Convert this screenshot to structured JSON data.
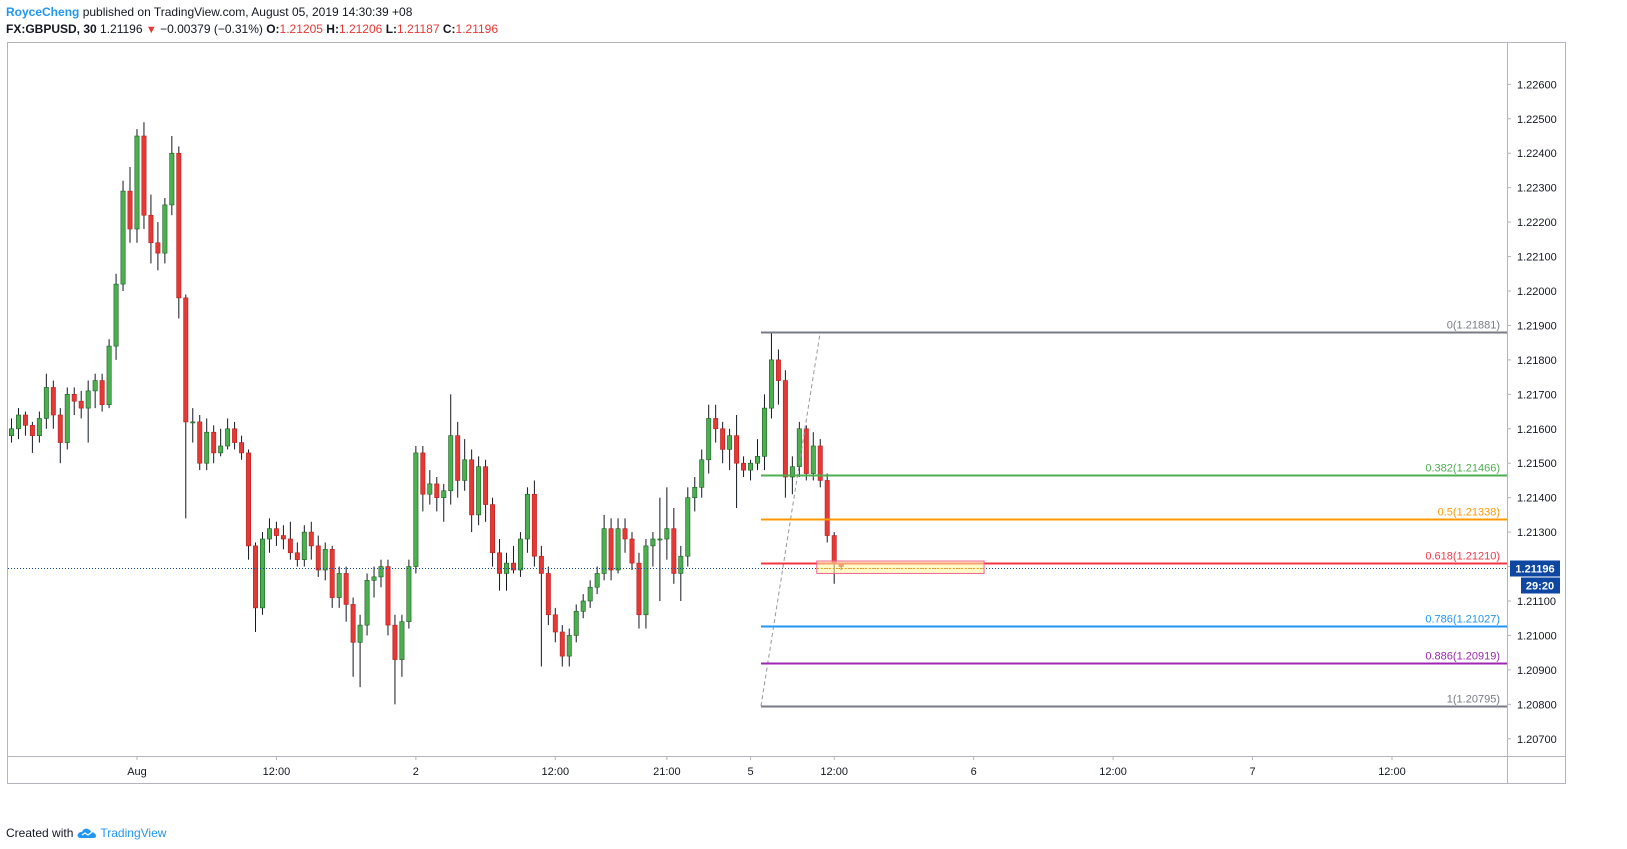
{
  "header": {
    "author": "RoyceCheng",
    "published_text": "published on TradingView.com, August 05, 2019 14:30:39 +08",
    "symbol": "FX:GBPUSD, 30",
    "last": "1.21196",
    "change": "−0.00379 (−0.31%)",
    "ohlc_labels": {
      "o": "O:",
      "h": "H:",
      "l": "L:",
      "c": "C:"
    },
    "open": "1.21205",
    "high": "1.21206",
    "low": "1.21187",
    "close": "1.21196",
    "down_arrow": "▼"
  },
  "footer": {
    "created_with": "Created with",
    "brand": "TradingView",
    "logo_icon": "tradingview-cloud-icon"
  },
  "colors": {
    "up": "#4caf50",
    "down": "#e53935",
    "up_border": "#1b5e20",
    "down_border": "#b71c1c",
    "blue_candle": "#2962ff",
    "fib_0": "#787b86",
    "fib_0382": "#4caf50",
    "fib_05": "#ff9800",
    "fib_0618": "#f23645",
    "fib_0786": "#2196f3",
    "fib_0886": "#9c27b0",
    "fib_1": "#787b86",
    "price_badge": "#0d47a1"
  },
  "chart_data": {
    "type": "candlestick",
    "symbol": "FX:GBPUSD",
    "timeframe": "30",
    "ylim": [
      1.2065,
      1.2272
    ],
    "y_ticks": [
      "1.22600",
      "1.22500",
      "1.22400",
      "1.22300",
      "1.22200",
      "1.22100",
      "1.22000",
      "1.21900",
      "1.21800",
      "1.21700",
      "1.21600",
      "1.21500",
      "1.21400",
      "1.21300",
      "1.21200",
      "1.21100",
      "1.21000",
      "1.20900",
      "1.20800",
      "1.20700"
    ],
    "y_tick_values": [
      1.226,
      1.225,
      1.224,
      1.223,
      1.222,
      1.221,
      1.22,
      1.219,
      1.218,
      1.217,
      1.216,
      1.215,
      1.214,
      1.213,
      1.212,
      1.211,
      1.21,
      1.209,
      1.208,
      1.207
    ],
    "x_ticks": [
      {
        "label": "Aug",
        "bar": 18
      },
      {
        "label": "12:00",
        "bar": 38
      },
      {
        "label": "2",
        "bar": 58
      },
      {
        "label": "12:00",
        "bar": 78
      },
      {
        "label": "21:00",
        "bar": 94
      },
      {
        "label": "5",
        "bar": 106
      },
      {
        "label": "12:00",
        "bar": 118
      },
      {
        "label": "6",
        "bar": 138
      },
      {
        "label": "12:00",
        "bar": 158
      },
      {
        "label": "7",
        "bar": 178
      },
      {
        "label": "12:00",
        "bar": 198
      }
    ],
    "bars_total": 215,
    "candles": [
      [
        1.2158,
        1.2163,
        1.2156,
        1.216
      ],
      [
        1.216,
        1.2166,
        1.2157,
        1.2164
      ],
      [
        1.2164,
        1.2165,
        1.2158,
        1.2161
      ],
      [
        1.2161,
        1.2162,
        1.2153,
        1.2158
      ],
      [
        1.2158,
        1.2165,
        1.2156,
        1.2163
      ],
      [
        1.2163,
        1.2176,
        1.216,
        1.2172
      ],
      [
        1.2172,
        1.2174,
        1.216,
        1.2164
      ],
      [
        1.2164,
        1.2166,
        1.215,
        1.2156
      ],
      [
        1.2156,
        1.2172,
        1.2154,
        1.217
      ],
      [
        1.217,
        1.2172,
        1.2164,
        1.2168
      ],
      [
        1.2168,
        1.2171,
        1.2163,
        1.2166
      ],
      [
        1.2166,
        1.2174,
        1.2156,
        1.2171
      ],
      [
        1.2171,
        1.2176,
        1.2166,
        1.2174
      ],
      [
        1.2174,
        1.2176,
        1.2165,
        1.2167
      ],
      [
        1.2167,
        1.2186,
        1.2166,
        1.2184
      ],
      [
        1.2184,
        1.2205,
        1.218,
        1.2202
      ],
      [
        1.2202,
        1.2232,
        1.22,
        1.2229
      ],
      [
        1.2229,
        1.2236,
        1.2214,
        1.2218
      ],
      [
        1.2218,
        1.2247,
        1.2214,
        1.2245
      ],
      [
        1.2245,
        1.2249,
        1.2218,
        1.2222
      ],
      [
        1.2222,
        1.2228,
        1.2208,
        1.2214
      ],
      [
        1.2214,
        1.222,
        1.2206,
        1.2211
      ],
      [
        1.2211,
        1.2227,
        1.2208,
        1.2225
      ],
      [
        1.2225,
        1.2245,
        1.2222,
        1.224
      ],
      [
        1.224,
        1.2242,
        1.2192,
        1.2198
      ],
      [
        1.2198,
        1.2199,
        1.2134,
        1.2162
      ],
      [
        1.2162,
        1.2166,
        1.2156,
        1.2162
      ],
      [
        1.2162,
        1.2164,
        1.2148,
        1.215
      ],
      [
        1.215,
        1.2163,
        1.2148,
        1.2159
      ],
      [
        1.2159,
        1.2161,
        1.215,
        1.2153
      ],
      [
        1.2153,
        1.216,
        1.2152,
        1.2155
      ],
      [
        1.2155,
        1.2163,
        1.2154,
        1.216
      ],
      [
        1.216,
        1.2162,
        1.2154,
        1.2156
      ],
      [
        1.2156,
        1.2158,
        1.2151,
        1.2153
      ],
      [
        1.2153,
        1.2154,
        1.2122,
        1.2126
      ],
      [
        1.2126,
        1.2127,
        1.2101,
        1.2108
      ],
      [
        1.2108,
        1.213,
        1.2106,
        1.2128
      ],
      [
        1.2128,
        1.2134,
        1.2124,
        1.2131
      ],
      [
        1.2131,
        1.2133,
        1.2126,
        1.2129
      ],
      [
        1.2129,
        1.2132,
        1.2125,
        1.2128
      ],
      [
        1.2128,
        1.2133,
        1.2122,
        1.2124
      ],
      [
        1.2124,
        1.2127,
        1.212,
        1.2122
      ],
      [
        1.2122,
        1.2132,
        1.212,
        1.213
      ],
      [
        1.213,
        1.2133,
        1.2122,
        1.2126
      ],
      [
        1.2126,
        1.2129,
        1.2117,
        1.2119
      ],
      [
        1.2119,
        1.2127,
        1.2116,
        1.2125
      ],
      [
        1.2125,
        1.2126,
        1.2108,
        1.2111
      ],
      [
        1.2111,
        1.212,
        1.2108,
        1.2118
      ],
      [
        1.2118,
        1.212,
        1.2104,
        1.2109
      ],
      [
        1.2109,
        1.2111,
        1.2088,
        1.2098
      ],
      [
        1.2098,
        1.2106,
        1.2085,
        1.2103
      ],
      [
        1.2103,
        1.2118,
        1.21,
        1.2116
      ],
      [
        1.2116,
        1.212,
        1.2111,
        1.2117
      ],
      [
        1.2117,
        1.2122,
        1.2114,
        1.212
      ],
      [
        1.212,
        1.2122,
        1.21,
        1.2103
      ],
      [
        1.2103,
        1.2106,
        1.208,
        1.2093
      ],
      [
        1.2093,
        1.2106,
        1.2088,
        1.2104
      ],
      [
        1.2104,
        1.2122,
        1.2102,
        1.212
      ],
      [
        1.212,
        1.2155,
        1.2118,
        1.2153
      ],
      [
        1.2153,
        1.2155,
        1.2136,
        1.2141
      ],
      [
        1.2141,
        1.2148,
        1.2138,
        1.2144
      ],
      [
        1.2144,
        1.2146,
        1.2136,
        1.214
      ],
      [
        1.214,
        1.2144,
        1.2133,
        1.2142
      ],
      [
        1.2142,
        1.217,
        1.2138,
        1.2158
      ],
      [
        1.2158,
        1.2162,
        1.214,
        1.2145
      ],
      [
        1.2145,
        1.2157,
        1.2142,
        1.2151
      ],
      [
        1.2151,
        1.2154,
        1.213,
        1.2135
      ],
      [
        1.2135,
        1.2152,
        1.2132,
        1.2149
      ],
      [
        1.2149,
        1.2151,
        1.2133,
        1.2138
      ],
      [
        1.2138,
        1.214,
        1.212,
        1.2124
      ],
      [
        1.2124,
        1.2128,
        1.2113,
        1.2118
      ],
      [
        1.2118,
        1.2124,
        1.2113,
        1.2121
      ],
      [
        1.2121,
        1.2126,
        1.2118,
        1.2119
      ],
      [
        1.2119,
        1.213,
        1.2117,
        1.2128
      ],
      [
        1.2128,
        1.2143,
        1.2124,
        1.2141
      ],
      [
        1.2141,
        1.2145,
        1.212,
        1.2123
      ],
      [
        1.2123,
        1.2126,
        1.2091,
        1.2118
      ],
      [
        1.2118,
        1.212,
        1.2103,
        1.2106
      ],
      [
        1.2106,
        1.2108,
        1.2098,
        1.2101
      ],
      [
        1.2101,
        1.2103,
        1.2091,
        1.2094
      ],
      [
        1.2094,
        1.2102,
        1.2091,
        1.21
      ],
      [
        1.21,
        1.2109,
        1.2098,
        1.2107
      ],
      [
        1.2107,
        1.2112,
        1.2105,
        1.211
      ],
      [
        1.211,
        1.2116,
        1.2108,
        1.2114
      ],
      [
        1.2114,
        1.212,
        1.2112,
        1.2118
      ],
      [
        1.2118,
        1.2135,
        1.2116,
        1.2131
      ],
      [
        1.2131,
        1.2134,
        1.2116,
        1.2119
      ],
      [
        1.2119,
        1.2134,
        1.2118,
        1.2131
      ],
      [
        1.2131,
        1.2134,
        1.2124,
        1.2128
      ],
      [
        1.2128,
        1.213,
        1.2119,
        1.2121
      ],
      [
        1.2121,
        1.2124,
        1.2102,
        1.2106
      ],
      [
        1.2106,
        1.2128,
        1.2102,
        1.2126
      ],
      [
        1.2126,
        1.213,
        1.212,
        1.2128
      ],
      [
        1.2128,
        1.214,
        1.211,
        1.2128
      ],
      [
        1.2128,
        1.2143,
        1.2122,
        1.2131
      ],
      [
        1.2131,
        1.2137,
        1.2115,
        1.2118
      ],
      [
        1.2118,
        1.2126,
        1.211,
        1.2123
      ],
      [
        1.2123,
        1.2143,
        1.212,
        1.214
      ],
      [
        1.214,
        1.2146,
        1.2136,
        1.2143
      ],
      [
        1.2143,
        1.2154,
        1.214,
        1.2151
      ],
      [
        1.2151,
        1.2167,
        1.2147,
        1.2163
      ],
      [
        1.2163,
        1.2167,
        1.2156,
        1.216
      ],
      [
        1.216,
        1.2162,
        1.215,
        1.2154
      ],
      [
        1.2154,
        1.216,
        1.2148,
        1.2158
      ],
      [
        1.2158,
        1.2164,
        1.2137,
        1.215
      ],
      [
        1.215,
        1.2152,
        1.2146,
        1.2148
      ],
      [
        1.2148,
        1.2151,
        1.2145,
        1.215
      ],
      [
        1.215,
        1.2157,
        1.2148,
        1.2152
      ],
      [
        1.2152,
        1.217,
        1.2148,
        1.2166
      ],
      [
        1.2166,
        1.2188,
        1.2163,
        1.218
      ],
      [
        1.218,
        1.2183,
        1.2167,
        1.2174
      ],
      [
        1.2174,
        1.2177,
        1.214,
        1.2146
      ],
      [
        1.2146,
        1.2152,
        1.2141,
        1.2149
      ],
      [
        1.2149,
        1.2162,
        1.2146,
        1.216
      ],
      [
        1.216,
        1.2161,
        1.2145,
        1.2147
      ],
      [
        1.2147,
        1.2159,
        1.2145,
        1.2155
      ],
      [
        1.2155,
        1.2157,
        1.2143,
        1.2145
      ],
      [
        1.2145,
        1.2147,
        1.2127,
        1.2129
      ],
      [
        1.2129,
        1.213,
        1.2115,
        1.2121
      ],
      [
        1.2121,
        1.2121,
        1.2119,
        1.212
      ]
    ],
    "fibonacci": {
      "from": {
        "bar": 108,
        "price": 1.20795
      },
      "to": {
        "bar": 116,
        "price": 1.21881
      },
      "levels": [
        {
          "label": "0(1.21881)",
          "price": 1.21881,
          "color": "#787b86"
        },
        {
          "label": "0.382(1.21466)",
          "price": 1.21466,
          "color": "#4caf50"
        },
        {
          "label": "0.5(1.21338)",
          "price": 1.21338,
          "color": "#ff9800"
        },
        {
          "label": "0.618(1.21210)",
          "price": 1.2121,
          "color": "#f23645"
        },
        {
          "label": "0.786(1.21027)",
          "price": 1.21027,
          "color": "#2196f3"
        },
        {
          "label": "0.886(1.20919)",
          "price": 1.20919,
          "color": "#9c27b0"
        },
        {
          "label": "1(1.20795)",
          "price": 1.20795,
          "color": "#787b86"
        }
      ]
    },
    "highlight_box": {
      "bar_from": 116,
      "bar_to": 139,
      "price_top": 1.21216,
      "price_bottom": 1.2118
    },
    "last_price_label": "1.21196",
    "last_price": 1.21196,
    "countdown_label": "29:20"
  }
}
